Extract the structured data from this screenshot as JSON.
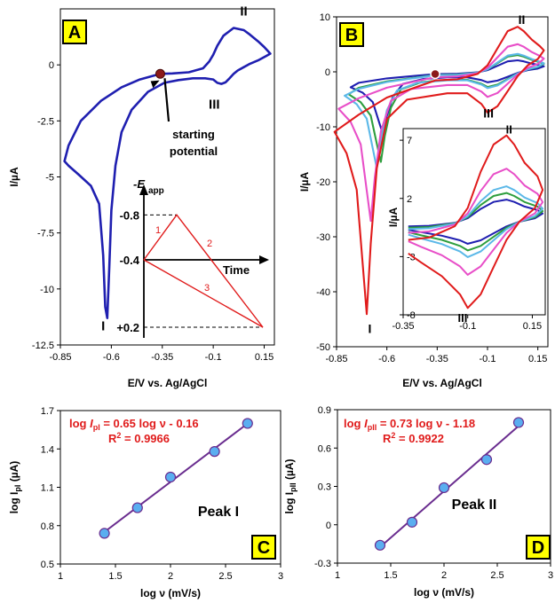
{
  "figure": {
    "panel_labels": [
      "A",
      "B",
      "C",
      "D"
    ],
    "label_bg": "#FFFF00"
  },
  "chart_data": [
    {
      "id": "A",
      "type": "line",
      "xlabel": "E/V vs. Ag/AgCl",
      "ylabel": "I/µA",
      "xlim": [
        -0.85,
        0.2
      ],
      "ylim": [
        -12.5,
        2.5
      ],
      "x_ticks": [
        -0.85,
        -0.6,
        -0.35,
        -0.1,
        0.15
      ],
      "x_tick_labels": [
        "-0.85",
        "-0.6",
        "-0.35",
        "-0.1",
        "0.15"
      ],
      "y_ticks": [
        0,
        -2.5,
        -5,
        -7.5,
        -10,
        -12.5
      ],
      "y_tick_labels": [
        "0",
        "-2.5",
        "-5",
        "-7.5",
        "-10",
        "-12.5"
      ],
      "series": [
        {
          "color": "#1f1fb0",
          "x": [
            -0.36,
            -0.3,
            -0.22,
            -0.15,
            -0.12,
            -0.1,
            -0.08,
            -0.05,
            0,
            0.05,
            0.08,
            0.12,
            0.15,
            0.18,
            0.16,
            0.12,
            0.08,
            0.05,
            0.02,
            0.0,
            -0.02,
            -0.04,
            -0.06,
            -0.08,
            -0.1,
            -0.14,
            -0.2,
            -0.27,
            -0.34,
            -0.42,
            -0.5,
            -0.55,
            -0.58,
            -0.6,
            -0.61,
            -0.62,
            -0.63,
            -0.64,
            -0.66,
            -0.7,
            -0.76,
            -0.81,
            -0.83,
            -0.81,
            -0.75,
            -0.65,
            -0.55,
            -0.46,
            -0.36
          ],
          "y": [
            -0.4,
            -0.38,
            -0.33,
            -0.15,
            0.15,
            0.45,
            0.85,
            1.3,
            1.65,
            1.55,
            1.35,
            1.05,
            0.8,
            0.5,
            0.4,
            0.2,
            0.05,
            -0.1,
            -0.25,
            -0.4,
            -0.6,
            -0.78,
            -0.85,
            -0.8,
            -0.65,
            -0.6,
            -0.6,
            -0.68,
            -0.8,
            -1.2,
            -2.0,
            -3.0,
            -4.5,
            -6.5,
            -9.0,
            -11.3,
            -10.8,
            -8.5,
            -6.2,
            -5.4,
            -4.9,
            -4.5,
            -4.3,
            -3.6,
            -2.5,
            -1.6,
            -1.0,
            -0.65,
            -0.4
          ]
        }
      ],
      "peak_labels": [
        {
          "text": "I",
          "x": -0.64,
          "y": -11.85
        },
        {
          "text": "II",
          "x": 0.05,
          "y": 2.2
        },
        {
          "text": "III",
          "x": -0.095,
          "y": -1.95
        }
      ],
      "start_point": {
        "x": -0.36,
        "y": -0.4,
        "color": "#8B1A1A"
      },
      "annotation": [
        "starting",
        "potential"
      ],
      "inset": {
        "axis_label_main": "-E",
        "axis_label_sub": "app",
        "time_label": "Time",
        "level_labels": [
          "-0.8",
          "-0.4",
          "+0.2"
        ],
        "segment_labels": [
          "1",
          "2",
          "3"
        ],
        "levels": [
          -0.8,
          -0.4,
          0.2
        ],
        "line_color": "#e01b1b"
      }
    },
    {
      "id": "B",
      "type": "line",
      "xlabel": "E/V vs. Ag/AgCl",
      "ylabel": "I/µA",
      "xlim": [
        -0.85,
        0.2
      ],
      "ylim": [
        -50,
        10
      ],
      "x_ticks": [
        -0.85,
        -0.6,
        -0.35,
        -0.1,
        0.15
      ],
      "x_tick_labels": [
        "-0.85",
        "-0.6",
        "-0.35",
        "-0.1",
        "0.15"
      ],
      "y_ticks": [
        10,
        0,
        -10,
        -20,
        -30,
        -40,
        -50
      ],
      "y_tick_labels": [
        "10",
        "0",
        "-10",
        "-20",
        "-30",
        "-40",
        "-50"
      ],
      "series": [
        {
          "color": "#1f1fb0",
          "scale": 1.0
        },
        {
          "color": "#2e9e3e",
          "scale": 1.45
        },
        {
          "color": "#5bb8e8",
          "scale": 1.55
        },
        {
          "color": "#e84fc8",
          "scale": 2.4
        },
        {
          "color": "#e01b1b",
          "scale": 3.9
        }
      ],
      "peak_labels": [
        {
          "text": "I",
          "x": -0.685,
          "y": -47.5
        },
        {
          "text": "II",
          "x": 0.07,
          "y": 8.7
        },
        {
          "text": "III",
          "x": -0.095,
          "y": -8.3
        }
      ],
      "start_point": {
        "x": -0.36,
        "y": -0.4,
        "color": "#8B1A1A"
      },
      "inset": {
        "ylabel": "I/µA",
        "xlim": [
          -0.35,
          0.2
        ],
        "ylim": [
          -8,
          8
        ],
        "x_ticks": [
          -0.35,
          -0.1,
          0.15
        ],
        "x_tick_labels": [
          "-0.35",
          "-0.1",
          "0.15"
        ],
        "y_ticks": [
          7,
          2,
          -3,
          -8
        ],
        "y_tick_labels": [
          "7",
          "2",
          "-3",
          "-8"
        ],
        "peak_labels": [
          {
            "text": "II",
            "x": 0.06,
            "y": 7.6
          },
          {
            "text": "III",
            "x": -0.12,
            "y": -8.6
          }
        ]
      }
    },
    {
      "id": "C",
      "type": "scatter",
      "xlabel": "log ν (mV/s)",
      "ylabel_main": "log I",
      "ylabel_sub": "pI",
      "ylabel_tail": " (µA)",
      "xlim": [
        1,
        3
      ],
      "ylim": [
        0.5,
        1.7
      ],
      "x_ticks": [
        1,
        1.5,
        2,
        2.5,
        3
      ],
      "x_tick_labels": [
        "1",
        "1.5",
        "2",
        "2.5",
        "3"
      ],
      "y_ticks": [
        0.5,
        0.8,
        1.1,
        1.4,
        1.7
      ],
      "y_tick_labels": [
        "0.5",
        "0.8",
        "1.1",
        "1.4",
        "1.7"
      ],
      "points": {
        "x": [
          1.4,
          1.7,
          2.0,
          2.4,
          2.7
        ],
        "y": [
          0.74,
          0.94,
          1.18,
          1.38,
          1.6
        ]
      },
      "fit": {
        "slope": 0.65,
        "intercept": -0.16
      },
      "equation": {
        "pre": "log ",
        "I": "I",
        "sub": "pI",
        "post": " = 0.65 log ν - 0.16"
      },
      "r2": {
        "pre": "R",
        "sup": "2",
        "post": " = 0.9966"
      },
      "series_label": "Peak I",
      "marker_color": "#5aaef0",
      "line_color": "#6a2d8f",
      "text_color": "#e01b1b"
    },
    {
      "id": "D",
      "type": "scatter",
      "xlabel": "log ν (mV/s)",
      "ylabel_main": "log I",
      "ylabel_sub": "pII",
      "ylabel_tail": " (µA)",
      "xlim": [
        1,
        3
      ],
      "ylim": [
        -0.3,
        0.9
      ],
      "x_ticks": [
        1,
        1.5,
        2,
        2.5,
        3
      ],
      "x_tick_labels": [
        "1",
        "1.5",
        "2",
        "2.5",
        "3"
      ],
      "y_ticks": [
        -0.3,
        0,
        0.3,
        0.6,
        0.9
      ],
      "y_tick_labels": [
        "-0.3",
        "0",
        "0.3",
        "0.6",
        "0.9"
      ],
      "points": {
        "x": [
          1.4,
          1.7,
          2.0,
          2.4,
          2.7
        ],
        "y": [
          -0.16,
          0.02,
          0.29,
          0.51,
          0.8
        ]
      },
      "fit": {
        "slope": 0.73,
        "intercept": -1.18
      },
      "equation": {
        "pre": "log ",
        "I": "I",
        "sub": "pII",
        "post": " = 0.73 log ν - 1.18"
      },
      "r2": {
        "pre": "R",
        "sup": "2",
        "post": " = 0.9922"
      },
      "series_label": "Peak II",
      "marker_color": "#5aaef0",
      "line_color": "#6a2d8f",
      "text_color": "#e01b1b"
    }
  ]
}
